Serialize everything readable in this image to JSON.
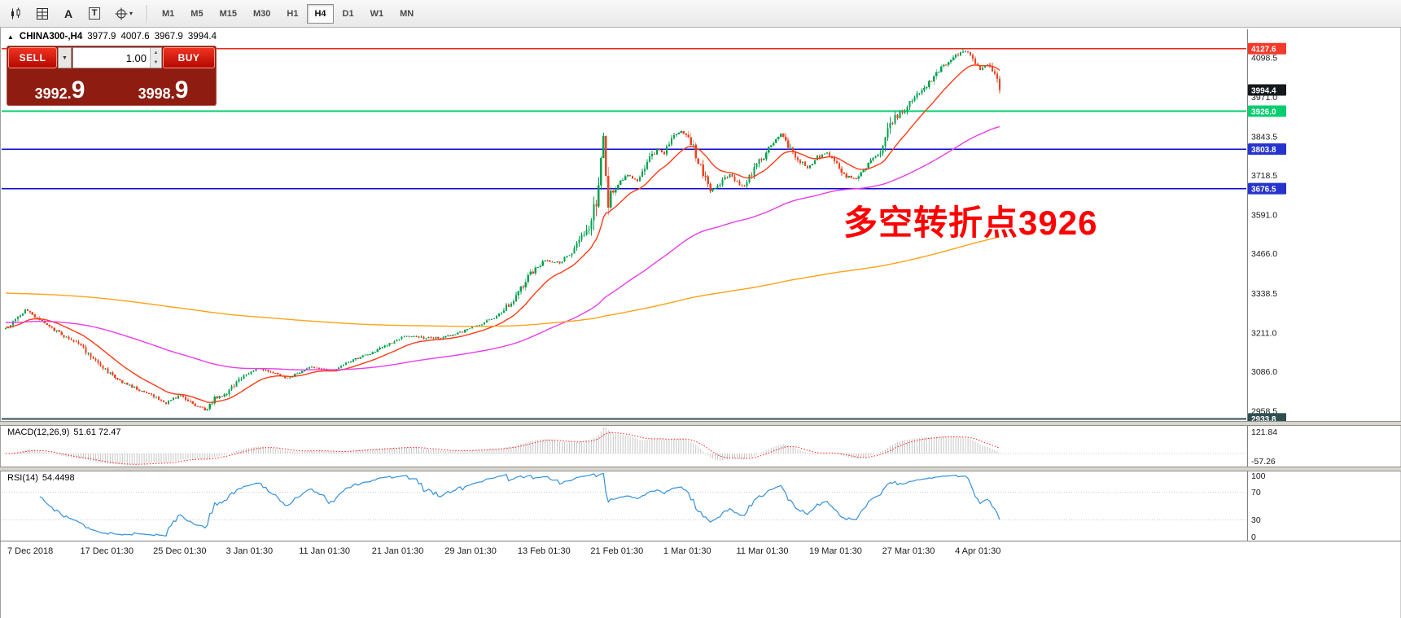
{
  "toolbar": {
    "icons": [
      {
        "name": "new-chart-icon"
      },
      {
        "name": "chart-grid-icon"
      },
      {
        "name": "label-a-icon",
        "glyph": "A"
      },
      {
        "name": "text-tool-icon",
        "glyph": "T"
      },
      {
        "name": "drawing-tools-icon",
        "glyph": "+",
        "caret": "▾"
      }
    ],
    "timeframes": [
      "M1",
      "M5",
      "M15",
      "M30",
      "H1",
      "H4",
      "D1",
      "W1",
      "MN"
    ],
    "active_timeframe": "H4"
  },
  "symbol_line": {
    "collapse_marker": "▲",
    "symbol": "CHINA300-,H4",
    "open": "3977.9",
    "high": "4007.6",
    "low": "3967.9",
    "close": "3994.4"
  },
  "trade_panel": {
    "sell_label": "SELL",
    "buy_label": "BUY",
    "volume": "1.00",
    "sell_price": "3992.9",
    "buy_price": "3998.9",
    "dropdown_caret": "▼",
    "spin_up": "▲",
    "spin_down": "▼"
  },
  "annotation": {
    "text": "多空转折点3926",
    "color": "#fe0000"
  },
  "chart_data": {
    "type": "candlestick",
    "symbol": "CHINA300-",
    "timeframe": "H4",
    "ohlc_display": {
      "open": 3977.9,
      "high": 4007.6,
      "low": 3967.9,
      "close": 3994.4
    },
    "bars": 410,
    "seed": 1234567,
    "last_close": 3994.4,
    "extreme_high": {
      "bar": 394,
      "price": 4127.6
    },
    "extreme_low": {
      "bar": 83,
      "price": 2958.5
    },
    "y_range": [
      2927,
      4190
    ],
    "y_ticks": [
      4098.5,
      3971.0,
      3843.5,
      3718.5,
      3591.0,
      3466.0,
      3338.5,
      3211.0,
      3086.0,
      2958.5
    ],
    "up_color": "#00a14e",
    "down_color": "#ec4320",
    "levels": [
      {
        "price": 4127.6,
        "label": "4127.6",
        "line_color": "#f22613",
        "badge_color": "#f5392a",
        "draw_line": true
      },
      {
        "price": 3994.4,
        "label": "3994.4",
        "line_color": "#15181d",
        "badge_color": "#15181d",
        "draw_line": false
      },
      {
        "price": 3926.0,
        "label": "3926.0",
        "line_color": "#00ce6f",
        "badge_color": "#00ce6f",
        "draw_line": true
      },
      {
        "price": 3803.8,
        "label": "3803.8",
        "line_color": "#0a0ad0",
        "badge_color": "#2633cc",
        "draw_line": true
      },
      {
        "price": 3676.5,
        "label": "3676.5",
        "line_color": "#0a0ad0",
        "badge_color": "#2633cc",
        "draw_line": true
      },
      {
        "price": 2933.8,
        "label": "2933.8",
        "line_color": "#2f4f4f",
        "badge_color": "#2f4f4f",
        "draw_line": true
      }
    ],
    "x_labels": [
      {
        "bar": 0,
        "text": "7 Dec 2018"
      },
      {
        "bar": 30,
        "text": "17 Dec 01:30"
      },
      {
        "bar": 60,
        "text": "25 Dec 01:30"
      },
      {
        "bar": 90,
        "text": "3 Jan 01:30"
      },
      {
        "bar": 120,
        "text": "11 Jan 01:30"
      },
      {
        "bar": 150,
        "text": "21 Jan 01:30"
      },
      {
        "bar": 180,
        "text": "29 Jan 01:30"
      },
      {
        "bar": 210,
        "text": "13 Feb 01:30"
      },
      {
        "bar": 240,
        "text": "21 Feb 01:30"
      },
      {
        "bar": 270,
        "text": "1 Mar 01:30"
      },
      {
        "bar": 300,
        "text": "11 Mar 01:30"
      },
      {
        "bar": 330,
        "text": "19 Mar 01:30"
      },
      {
        "bar": 360,
        "text": "27 Mar 01:30"
      },
      {
        "bar": 390,
        "text": "4 Apr 01:30"
      }
    ],
    "price_path": [
      [
        0,
        3225
      ],
      [
        8,
        3285
      ],
      [
        16,
        3240
      ],
      [
        24,
        3200
      ],
      [
        30,
        3175
      ],
      [
        38,
        3110
      ],
      [
        46,
        3060
      ],
      [
        54,
        3030
      ],
      [
        60,
        3010
      ],
      [
        66,
        2985
      ],
      [
        72,
        3012
      ],
      [
        78,
        2978
      ],
      [
        83,
        2960
      ],
      [
        86,
        3000
      ],
      [
        90,
        3012
      ],
      [
        96,
        3060
      ],
      [
        103,
        3095
      ],
      [
        110,
        3085
      ],
      [
        116,
        3065
      ],
      [
        120,
        3080
      ],
      [
        126,
        3102
      ],
      [
        134,
        3088
      ],
      [
        142,
        3120
      ],
      [
        150,
        3145
      ],
      [
        158,
        3175
      ],
      [
        165,
        3202
      ],
      [
        172,
        3195
      ],
      [
        180,
        3195
      ],
      [
        188,
        3215
      ],
      [
        196,
        3240
      ],
      [
        203,
        3268
      ],
      [
        210,
        3330
      ],
      [
        216,
        3400
      ],
      [
        222,
        3445
      ],
      [
        228,
        3438
      ],
      [
        234,
        3480
      ],
      [
        240,
        3555
      ],
      [
        244,
        3680
      ],
      [
        246,
        3840
      ],
      [
        248,
        3645
      ],
      [
        252,
        3690
      ],
      [
        256,
        3722
      ],
      [
        260,
        3702
      ],
      [
        264,
        3760
      ],
      [
        268,
        3802
      ],
      [
        271,
        3790
      ],
      [
        274,
        3840
      ],
      [
        278,
        3862
      ],
      [
        282,
        3830
      ],
      [
        286,
        3742
      ],
      [
        290,
        3672
      ],
      [
        294,
        3692
      ],
      [
        298,
        3722
      ],
      [
        301,
        3700
      ],
      [
        304,
        3682
      ],
      [
        308,
        3740
      ],
      [
        312,
        3782
      ],
      [
        316,
        3822
      ],
      [
        319,
        3856
      ],
      [
        322,
        3810
      ],
      [
        326,
        3770
      ],
      [
        330,
        3745
      ],
      [
        334,
        3775
      ],
      [
        338,
        3795
      ],
      [
        342,
        3760
      ],
      [
        346,
        3716
      ],
      [
        350,
        3706
      ],
      [
        354,
        3746
      ],
      [
        358,
        3776
      ],
      [
        360,
        3790
      ],
      [
        363,
        3856
      ],
      [
        366,
        3906
      ],
      [
        370,
        3932
      ],
      [
        373,
        3962
      ],
      [
        376,
        3986
      ],
      [
        380,
        4016
      ],
      [
        384,
        4056
      ],
      [
        388,
        4086
      ],
      [
        392,
        4110
      ],
      [
        395,
        4120
      ],
      [
        398,
        4096
      ],
      [
        401,
        4062
      ],
      [
        404,
        4076
      ],
      [
        407,
        4042
      ],
      [
        409,
        3994.4
      ]
    ],
    "moving_averages": [
      {
        "name": "fast-ma",
        "color": "#ff3b16",
        "alpha": 0.1,
        "init": 3230
      },
      {
        "name": "medium-ma",
        "color": "#ea3dea",
        "alpha": 0.016,
        "init": 3245
      },
      {
        "name": "slow-ma",
        "color": "#ffa216",
        "alpha": 0.0035,
        "init": 3340
      }
    ]
  },
  "macd_panel": {
    "label": "MACD(12,26,9)",
    "values": "51.61 72.47",
    "axis_max": 121.84,
    "axis_min": -57.26,
    "fast": 12,
    "slow": 26,
    "signal": 9,
    "histogram_color": "#c6c6c6",
    "signal_color": "#ff2222"
  },
  "rsi_panel": {
    "label": "RSI(14)",
    "value": "54.4498",
    "period": 14,
    "ticks": [
      100,
      70,
      30,
      0
    ],
    "levels": [
      70,
      30
    ],
    "line_color": "#3390dd"
  }
}
